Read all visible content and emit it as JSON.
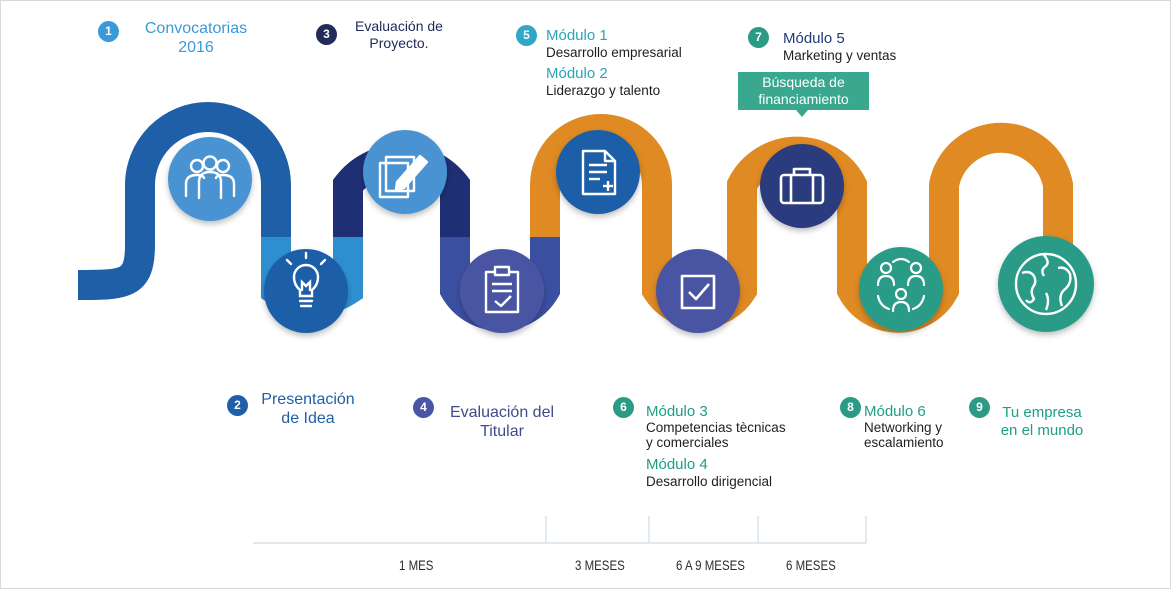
{
  "steps": [
    {
      "num": "1",
      "lines": [
        "Convocatorias",
        "2016"
      ]
    },
    {
      "num": "2",
      "lines": [
        "Presentación",
        "de Idea"
      ]
    },
    {
      "num": "3",
      "lines": [
        "Evaluación de",
        "Proyecto."
      ]
    },
    {
      "num": "4",
      "lines": [
        "Evaluación del",
        "Titular"
      ]
    },
    {
      "num": "5",
      "modules": [
        {
          "title": "Módulo 1",
          "subtitle": "Desarrollo empresarial"
        },
        {
          "title": "Módulo 2",
          "subtitle": "Liderazgo y talento"
        }
      ]
    },
    {
      "num": "6",
      "modules": [
        {
          "title": "Módulo 3",
          "subtitle": "Competencias tècnicas",
          "subtitle2": "y comerciales"
        },
        {
          "title": "Módulo 4",
          "subtitle": "Desarrollo dirigencial"
        }
      ]
    },
    {
      "num": "7",
      "modules": [
        {
          "title": "Módulo 5",
          "subtitle": "Marketing y ventas"
        }
      ]
    },
    {
      "num": "8",
      "modules": [
        {
          "title": "Módulo 6",
          "subtitle": "Networking y",
          "subtitle2": "escalamiento"
        }
      ]
    },
    {
      "num": "9",
      "lines": [
        "Tu empresa",
        "en el mundo"
      ]
    }
  ],
  "callout": {
    "lines": [
      "Búsqueda de",
      "financiamiento"
    ]
  },
  "timeline": [
    "1 MES",
    "3 MESES",
    "6 A 9 MESES",
    "6  MESES"
  ],
  "icons": [
    "people-group-icon",
    "lightbulb-icon",
    "edit-document-icon",
    "clipboard-check-icon",
    "document-plus-icon",
    "checkbox-icon",
    "briefcase-icon",
    "network-people-icon",
    "globe-icon"
  ],
  "colors": {
    "road_dark_blue": "#1f5fa8",
    "road_light_blue": "#2e8fd0",
    "road_navy": "#1f2f73",
    "road_purple": "#3b4fa0",
    "road_orange": "#df8a23",
    "circle_light_blue": "#4a93d3",
    "circle_navy": "#2a3b7e",
    "circle_purple": "#4a55a3",
    "circle_teal": "#2b9b86",
    "accent_teal": "#3aa78f"
  }
}
